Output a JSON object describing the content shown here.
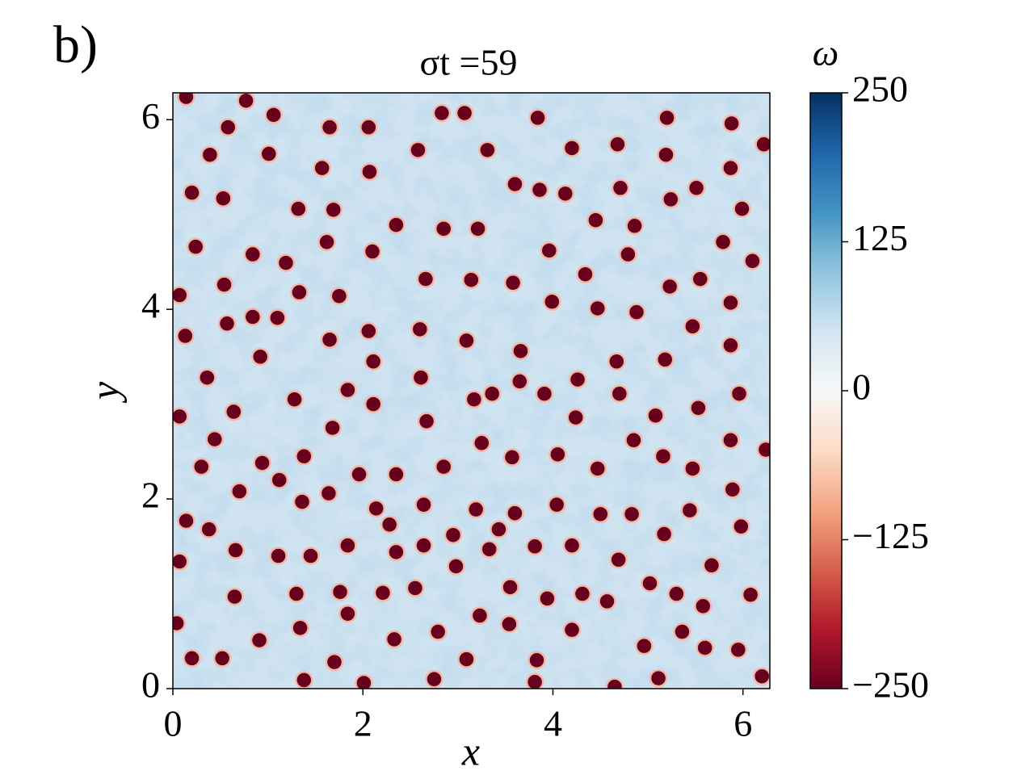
{
  "panel_label": "b)",
  "chart_data": {
    "type": "scatter",
    "title": "σt =59",
    "x_label": "x",
    "y_label": "y",
    "color": "#67001f",
    "xlim": [
      0,
      6.283
    ],
    "ylim": [
      0,
      6.283
    ],
    "xticks": [
      0,
      2,
      4,
      6
    ],
    "yticks": [
      0,
      2,
      4,
      6
    ],
    "colorbar": {
      "label": "ω",
      "lim": [
        -250,
        250
      ],
      "ticks": [
        {
          "value": -250,
          "label": "−250"
        },
        {
          "value": -125,
          "label": "−125"
        },
        0,
        125,
        250
      ],
      "colors": [
        "#67001f",
        "#b2182b",
        "#d6604d",
        "#f4a582",
        "#fddbc7",
        "#f7f7f7",
        "#d1e5f0",
        "#92c5de",
        "#4393c3",
        "#2166ac",
        "#053061"
      ]
    },
    "x": [
      0.14,
      0.77,
      1.06,
      1.65,
      2.06,
      0.58,
      2.83,
      3.07,
      3.84,
      4.2,
      4.68,
      5.2,
      5.88,
      6.22,
      0.39,
      1.01,
      1.57,
      2.07,
      2.58,
      3.31,
      3.6,
      4.13,
      4.71,
      5.19,
      5.87,
      0.2,
      0.53,
      1.32,
      1.69,
      2.35,
      2.85,
      3.21,
      3.86,
      4.45,
      4.86,
      5.24,
      5.51,
      5.99,
      0.24,
      0.84,
      1.19,
      1.62,
      2.1,
      2.66,
      3.14,
      3.58,
      3.96,
      4.34,
      4.79,
      5.23,
      5.55,
      5.79,
      6.1,
      0.54,
      1.33,
      1.75,
      0.07,
      0.84,
      1.1,
      1.65,
      0.13,
      0.57,
      2.06,
      2.6,
      3.09,
      3.66,
      3.99,
      4.47,
      4.88,
      5.47,
      5.87,
      0.92,
      2.11,
      2.61,
      3.17,
      3.65,
      4.26,
      4.67,
      5.18,
      5.87,
      0.36,
      1.28,
      1.84,
      2.11,
      2.67,
      3.36,
      3.91,
      4.7,
      5.53,
      5.96,
      0.07,
      0.64,
      1.68,
      4.24,
      4.85,
      5.08,
      6.24,
      0.44,
      0.3,
      0.94,
      1.38,
      1.96,
      2.35,
      2.85,
      3.25,
      3.57,
      4.05,
      4.47,
      5.16,
      5.47,
      5.87,
      0.7,
      1.12,
      1.64,
      2.14,
      2.64,
      3.19,
      3.6,
      4.04,
      4.5,
      4.83,
      5.44,
      5.89,
      0.14,
      0.38,
      1.36,
      1.84,
      2.28,
      2.95,
      3.43,
      4.2,
      4.69,
      5.17,
      5.67,
      5.98,
      0.07,
      0.66,
      1.11,
      1.45,
      2.35,
      2.64,
      3.33,
      3.81,
      5.02,
      0.65,
      1.3,
      1.76,
      2.21,
      2.55,
      2.98,
      3.55,
      3.94,
      4.31,
      4.57,
      5.3,
      5.58,
      6.08,
      0.04,
      1.34,
      1.84,
      2.33,
      2.79,
      3.23,
      3.54,
      4.2,
      5.36,
      5.95,
      0.2,
      0.52,
      0.91,
      1.7,
      3.09,
      3.83,
      4.96,
      5.6,
      6.2,
      1.38,
      2.01,
      2.75,
      3.81,
      4.65,
      5.11
    ],
    "y": [
      6.24,
      6.2,
      6.05,
      5.92,
      5.92,
      5.92,
      6.07,
      6.07,
      6.02,
      5.7,
      5.74,
      6.02,
      5.96,
      5.74,
      5.63,
      5.64,
      5.49,
      5.45,
      5.68,
      5.68,
      5.32,
      5.22,
      5.28,
      5.63,
      5.49,
      5.23,
      5.17,
      5.06,
      5.05,
      4.89,
      4.85,
      4.85,
      5.26,
      4.94,
      4.88,
      5.16,
      5.28,
      5.06,
      4.66,
      4.58,
      4.49,
      4.71,
      4.61,
      4.32,
      4.31,
      4.28,
      4.62,
      4.37,
      4.58,
      4.24,
      4.32,
      4.71,
      4.51,
      4.26,
      4.18,
      4.14,
      4.15,
      3.92,
      3.91,
      3.68,
      3.72,
      3.85,
      3.77,
      3.79,
      3.67,
      3.56,
      4.08,
      4.01,
      3.97,
      3.82,
      4.07,
      3.5,
      3.45,
      3.28,
      3.05,
      3.24,
      3.26,
      3.45,
      3.47,
      3.62,
      3.28,
      3.05,
      3.15,
      3.0,
      2.82,
      3.11,
      3.11,
      3.11,
      2.96,
      3.11,
      2.87,
      2.92,
      2.75,
      2.86,
      2.62,
      2.88,
      2.52,
      2.63,
      2.34,
      2.38,
      2.45,
      2.26,
      2.26,
      2.34,
      2.59,
      2.44,
      2.47,
      2.32,
      2.45,
      2.32,
      2.62,
      2.08,
      2.2,
      2.06,
      1.9,
      1.94,
      1.89,
      1.85,
      1.94,
      1.84,
      1.84,
      1.88,
      2.1,
      1.77,
      1.68,
      1.97,
      1.51,
      1.73,
      1.62,
      1.68,
      1.51,
      1.36,
      1.63,
      1.3,
      1.71,
      1.34,
      1.46,
      1.4,
      1.4,
      1.44,
      1.51,
      1.47,
      1.5,
      1.11,
      0.97,
      1.0,
      1.02,
      1.01,
      1.06,
      1.29,
      1.07,
      0.95,
      1.0,
      0.92,
      1.0,
      0.87,
      0.99,
      0.69,
      0.64,
      0.79,
      0.52,
      0.6,
      0.77,
      0.68,
      0.62,
      0.6,
      0.41,
      0.32,
      0.32,
      0.51,
      0.28,
      0.31,
      0.3,
      0.45,
      0.43,
      0.13,
      0.09,
      0.06,
      0.1,
      0.07,
      0.02,
      0.11
    ]
  }
}
